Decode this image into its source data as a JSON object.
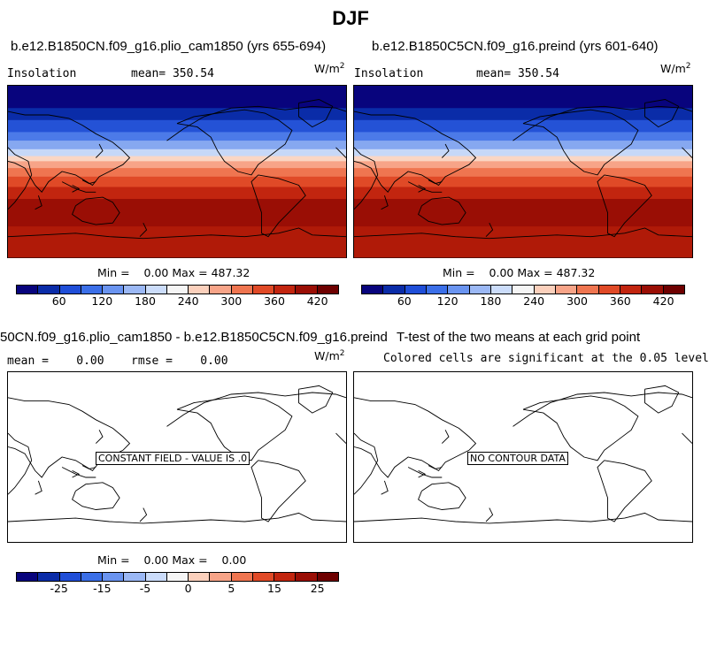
{
  "title": "DJF",
  "panels": [
    {
      "heading": "b.e12.B1850CN.f09_g16.plio_cam1850 (yrs 655-694)",
      "left_label": "Insolation",
      "center_label": "mean=  350.54",
      "unit_base": "W/m",
      "unit_exp": "2",
      "stats_line": "Min =    0.00 Max = 487.32",
      "map_fill": "insolation",
      "colorbar": "insolation"
    },
    {
      "heading": "b.e12.B1850C5CN.f09_g16.preind (yrs 601-640)",
      "left_label": "Insolation",
      "center_label": "mean=  350.54",
      "unit_base": "W/m",
      "unit_exp": "2",
      "stats_line": "Min =    0.00 Max = 487.32",
      "map_fill": "insolation",
      "colorbar": "insolation"
    },
    {
      "heading": "50CN.f09_g16.plio_cam1850 - b.e12.B1850C5CN.f09_g16.preind",
      "left_label": "mean =    0.00",
      "center_label": "rmse =    0.00",
      "unit_base": "W/m",
      "unit_exp": "2",
      "stats_line": "Min =    0.00 Max =    0.00",
      "map_fill": "none",
      "message": "CONSTANT FIELD - VALUE IS .0",
      "colorbar": "difference"
    },
    {
      "heading": "T-test of the two means at each grid point",
      "subheading": "Colored cells are significant at the 0.05 level",
      "map_fill": "none",
      "message": "NO CONTOUR DATA"
    }
  ],
  "colorbars": {
    "insolation": {
      "colors": [
        "#08047d",
        "#0a2ca8",
        "#1f4ed8",
        "#3b6fe8",
        "#6a94f0",
        "#9bb8f5",
        "#cbdcfa",
        "#f5f5f5",
        "#fbd0bc",
        "#f7a488",
        "#ef7550",
        "#e04a27",
        "#c2250f",
        "#9a0e05",
        "#6e0000"
      ],
      "labels": [
        "60",
        "120",
        "180",
        "240",
        "300",
        "360",
        "420"
      ]
    },
    "difference": {
      "colors": [
        "#08047d",
        "#0a2ca8",
        "#1f4ed8",
        "#3b6fe8",
        "#6a94f0",
        "#9bb8f5",
        "#cbdcfa",
        "#f5f5f5",
        "#fbd0bc",
        "#f7a488",
        "#ef7550",
        "#e04a27",
        "#c2250f",
        "#9a0e05",
        "#6e0000"
      ],
      "labels": [
        "-25",
        "-15",
        "-5",
        "0",
        "5",
        "15",
        "25"
      ]
    }
  }
}
